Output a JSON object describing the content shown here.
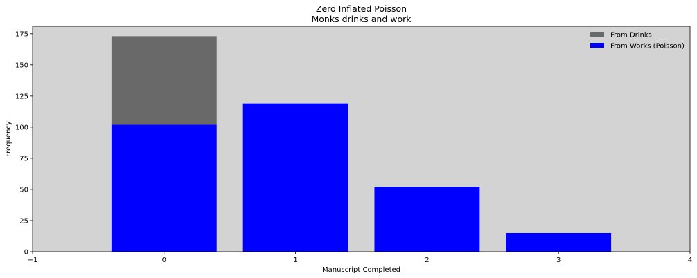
{
  "chart_data": {
    "type": "bar",
    "title": "Zero Inflated Poisson",
    "subtitle": "Monks drinks and work",
    "xlabel": "Manuscript Completed",
    "ylabel": "Frequency",
    "categories": [
      0,
      1,
      2,
      3
    ],
    "xlim": [
      -1,
      4
    ],
    "ylim": [
      0,
      181
    ],
    "xticks": [
      -1,
      0,
      1,
      2,
      3,
      4
    ],
    "yticks": [
      0,
      25,
      50,
      75,
      100,
      125,
      150,
      175
    ],
    "stacked": true,
    "series": [
      {
        "name": "From Works (Poisson)",
        "values": [
          102,
          119,
          52,
          15
        ],
        "color": "#0000ff"
      },
      {
        "name": "From Drinks",
        "values": [
          71,
          0,
          0,
          0
        ],
        "color": "#696969"
      }
    ],
    "legend_order": [
      "From Drinks",
      "From Works (Poisson)"
    ],
    "legend_position": "top-right",
    "background_color": "#d3d3d3",
    "grid": false
  }
}
